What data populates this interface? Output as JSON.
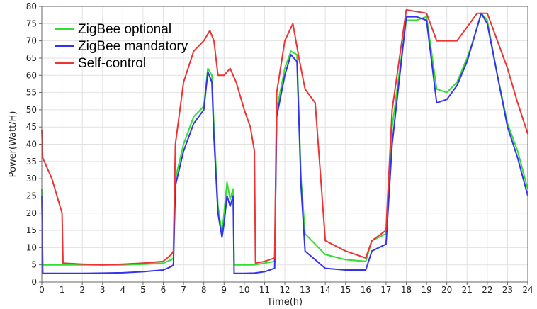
{
  "chart_data": {
    "type": "line",
    "title": "",
    "xlabel": "Time(h)",
    "ylabel": "Power(Watt/H)",
    "xlim": [
      0,
      24
    ],
    "ylim": [
      0,
      80
    ],
    "xticks": [
      0,
      1,
      2,
      3,
      4,
      5,
      6,
      7,
      8,
      9,
      10,
      11,
      12,
      13,
      14,
      15,
      16,
      17,
      18,
      19,
      20,
      21,
      22,
      23,
      24
    ],
    "yticks": [
      0,
      5,
      10,
      15,
      20,
      25,
      30,
      35,
      40,
      45,
      50,
      55,
      60,
      65,
      70,
      75,
      80
    ],
    "grid": true,
    "legend_position": "top-left",
    "series": [
      {
        "name": "ZigBee optional",
        "color": "#33dd33",
        "points": [
          [
            0,
            27
          ],
          [
            0.05,
            5
          ],
          [
            1,
            5
          ],
          [
            2,
            5
          ],
          [
            3,
            5
          ],
          [
            4,
            5
          ],
          [
            5,
            5.2
          ],
          [
            6,
            5.5
          ],
          [
            6.4,
            6.5
          ],
          [
            6.5,
            7
          ],
          [
            6.6,
            30
          ],
          [
            7,
            40
          ],
          [
            7.5,
            48
          ],
          [
            8,
            51
          ],
          [
            8.2,
            62
          ],
          [
            8.4,
            60
          ],
          [
            8.5,
            45
          ],
          [
            8.7,
            22
          ],
          [
            8.9,
            14
          ],
          [
            9,
            20
          ],
          [
            9.15,
            29
          ],
          [
            9.3,
            24
          ],
          [
            9.45,
            27
          ],
          [
            9.5,
            5
          ],
          [
            10,
            5
          ],
          [
            10.5,
            5
          ],
          [
            11,
            5.5
          ],
          [
            11.5,
            6
          ],
          [
            11.6,
            50
          ],
          [
            12,
            62
          ],
          [
            12.3,
            67
          ],
          [
            12.6,
            66
          ],
          [
            12.8,
            30
          ],
          [
            13,
            14
          ],
          [
            14,
            8
          ],
          [
            15,
            6.5
          ],
          [
            16,
            6
          ],
          [
            16.3,
            12
          ],
          [
            17,
            14
          ],
          [
            17.3,
            45
          ],
          [
            18,
            76
          ],
          [
            18.5,
            76
          ],
          [
            19,
            77
          ],
          [
            19.5,
            56
          ],
          [
            20,
            55
          ],
          [
            20.5,
            58
          ],
          [
            21,
            65
          ],
          [
            21.3,
            70
          ],
          [
            21.7,
            78
          ],
          [
            22,
            76
          ],
          [
            22.5,
            60
          ],
          [
            23,
            46
          ],
          [
            23.5,
            38
          ],
          [
            24,
            27
          ]
        ]
      },
      {
        "name": "ZigBee mandatory",
        "color": "#3333ee",
        "points": [
          [
            0,
            25
          ],
          [
            0.05,
            2.5
          ],
          [
            1,
            2.5
          ],
          [
            2,
            2.5
          ],
          [
            3,
            2.6
          ],
          [
            4,
            2.7
          ],
          [
            5,
            3
          ],
          [
            6,
            3.5
          ],
          [
            6.4,
            4.5
          ],
          [
            6.5,
            5
          ],
          [
            6.6,
            28
          ],
          [
            7,
            38
          ],
          [
            7.5,
            46
          ],
          [
            8,
            50
          ],
          [
            8.2,
            61
          ],
          [
            8.4,
            58
          ],
          [
            8.5,
            42
          ],
          [
            8.7,
            20
          ],
          [
            8.9,
            13
          ],
          [
            9,
            17
          ],
          [
            9.15,
            25
          ],
          [
            9.3,
            22
          ],
          [
            9.45,
            25
          ],
          [
            9.5,
            2.5
          ],
          [
            10,
            2.5
          ],
          [
            10.5,
            2.6
          ],
          [
            11,
            3
          ],
          [
            11.5,
            4
          ],
          [
            11.6,
            48
          ],
          [
            12,
            60
          ],
          [
            12.3,
            66
          ],
          [
            12.6,
            64
          ],
          [
            12.8,
            28
          ],
          [
            13,
            9
          ],
          [
            14,
            4
          ],
          [
            15,
            3.5
          ],
          [
            16,
            3.5
          ],
          [
            16.3,
            9
          ],
          [
            17,
            11
          ],
          [
            17.3,
            40
          ],
          [
            18,
            77
          ],
          [
            18.5,
            77
          ],
          [
            19,
            76
          ],
          [
            19.5,
            52
          ],
          [
            20,
            53
          ],
          [
            20.5,
            57
          ],
          [
            21,
            64
          ],
          [
            21.3,
            70
          ],
          [
            21.7,
            78
          ],
          [
            22,
            75
          ],
          [
            22.5,
            60
          ],
          [
            23,
            45
          ],
          [
            23.5,
            36
          ],
          [
            24,
            25
          ]
        ]
      },
      {
        "name": "Self-control",
        "color": "#ee3333",
        "points": [
          [
            0,
            44
          ],
          [
            0.05,
            36
          ],
          [
            0.5,
            30
          ],
          [
            0.9,
            22
          ],
          [
            1,
            20
          ],
          [
            1.05,
            5.5
          ],
          [
            2,
            5.2
          ],
          [
            3,
            5
          ],
          [
            4,
            5.2
          ],
          [
            5,
            5.5
          ],
          [
            6,
            6
          ],
          [
            6.4,
            8
          ],
          [
            6.5,
            9
          ],
          [
            6.6,
            40
          ],
          [
            7,
            58
          ],
          [
            7.5,
            67
          ],
          [
            8,
            70
          ],
          [
            8.3,
            73
          ],
          [
            8.5,
            70
          ],
          [
            8.7,
            60
          ],
          [
            9,
            60
          ],
          [
            9.3,
            62
          ],
          [
            9.6,
            58
          ],
          [
            10,
            50
          ],
          [
            10.3,
            45
          ],
          [
            10.5,
            38
          ],
          [
            10.55,
            5.5
          ],
          [
            11,
            6
          ],
          [
            11.5,
            7
          ],
          [
            11.6,
            55
          ],
          [
            12,
            70
          ],
          [
            12.4,
            75
          ],
          [
            12.7,
            65
          ],
          [
            13,
            56
          ],
          [
            13.5,
            52
          ],
          [
            14,
            12
          ],
          [
            15,
            9
          ],
          [
            16,
            7
          ],
          [
            16.3,
            12
          ],
          [
            17,
            15
          ],
          [
            17.3,
            50
          ],
          [
            18,
            79
          ],
          [
            19,
            78
          ],
          [
            19.5,
            70
          ],
          [
            20,
            70
          ],
          [
            20.5,
            70
          ],
          [
            21,
            74
          ],
          [
            21.5,
            78
          ],
          [
            22,
            78
          ],
          [
            22.5,
            70
          ],
          [
            23,
            62
          ],
          [
            23.5,
            52
          ],
          [
            24,
            43
          ]
        ]
      }
    ]
  }
}
